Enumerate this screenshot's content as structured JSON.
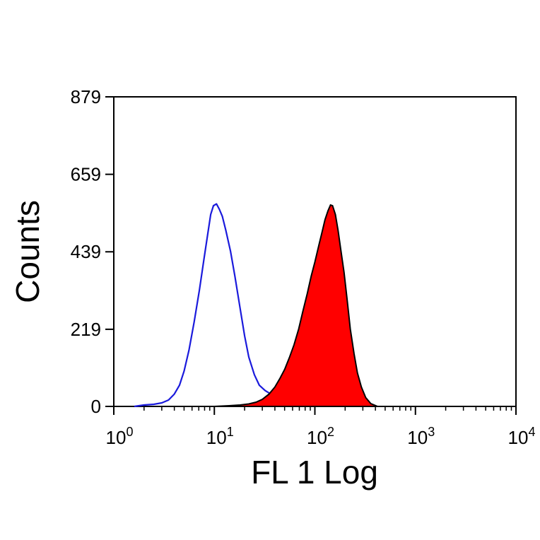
{
  "chart_data": {
    "type": "area",
    "xlabel": "FL 1 Log",
    "ylabel": "Counts",
    "x_scale": "log",
    "xlim": [
      1,
      10000
    ],
    "ylim": [
      0,
      879
    ],
    "x_ticks": [
      {
        "value": 1,
        "base": "10",
        "exp": "0"
      },
      {
        "value": 10,
        "base": "10",
        "exp": "1"
      },
      {
        "value": 100,
        "base": "10",
        "exp": "2"
      },
      {
        "value": 1000,
        "base": "10",
        "exp": "3"
      },
      {
        "value": 10000,
        "base": "10",
        "exp": "4"
      }
    ],
    "y_ticks": [
      0,
      219,
      439,
      659,
      879
    ],
    "grid": false,
    "series": [
      {
        "style": "outline",
        "color": "#1a1adc",
        "points": [
          [
            1.6,
            0
          ],
          [
            2.0,
            4
          ],
          [
            2.5,
            6
          ],
          [
            3.0,
            10
          ],
          [
            3.5,
            18
          ],
          [
            4.0,
            35
          ],
          [
            4.5,
            60
          ],
          [
            5.0,
            100
          ],
          [
            5.6,
            160
          ],
          [
            6.3,
            240
          ],
          [
            7.1,
            330
          ],
          [
            7.9,
            420
          ],
          [
            8.5,
            480
          ],
          [
            9.2,
            545
          ],
          [
            9.8,
            570
          ],
          [
            10.5,
            575
          ],
          [
            11.2,
            560
          ],
          [
            12.0,
            540
          ],
          [
            13.0,
            500
          ],
          [
            14.5,
            440
          ],
          [
            16.0,
            370
          ],
          [
            18.0,
            280
          ],
          [
            20.0,
            200
          ],
          [
            22.0,
            140
          ],
          [
            25.0,
            90
          ],
          [
            28.0,
            60
          ],
          [
            32.0,
            45
          ],
          [
            38.0,
            32
          ],
          [
            45.0,
            24
          ],
          [
            55.0,
            17
          ],
          [
            65.0,
            12
          ],
          [
            80.0,
            9
          ],
          [
            100.0,
            7
          ],
          [
            130.0,
            5
          ],
          [
            170.0,
            4
          ],
          [
            220.0,
            3
          ],
          [
            300.0,
            0
          ]
        ]
      },
      {
        "style": "filled",
        "color": "#ff0000",
        "edge_color": "#000000",
        "points": [
          [
            10.0,
            0
          ],
          [
            14.0,
            2
          ],
          [
            18.0,
            4
          ],
          [
            22.0,
            7
          ],
          [
            26.0,
            12
          ],
          [
            30.0,
            20
          ],
          [
            35.0,
            35
          ],
          [
            40.0,
            55
          ],
          [
            45.0,
            80
          ],
          [
            50.0,
            105
          ],
          [
            56.0,
            140
          ],
          [
            62.0,
            175
          ],
          [
            69.0,
            220
          ],
          [
            76.0,
            270
          ],
          [
            84.0,
            320
          ],
          [
            92.0,
            370
          ],
          [
            100.0,
            410
          ],
          [
            110.0,
            460
          ],
          [
            118.0,
            495
          ],
          [
            126.0,
            530
          ],
          [
            135.0,
            555
          ],
          [
            143.0,
            572
          ],
          [
            150.0,
            570
          ],
          [
            160.0,
            545
          ],
          [
            170.0,
            500
          ],
          [
            180.0,
            450
          ],
          [
            195.0,
            380
          ],
          [
            210.0,
            300
          ],
          [
            225.0,
            220
          ],
          [
            245.0,
            150
          ],
          [
            265.0,
            95
          ],
          [
            290.0,
            55
          ],
          [
            320.0,
            25
          ],
          [
            360.0,
            8
          ],
          [
            420.0,
            0
          ]
        ]
      }
    ]
  }
}
